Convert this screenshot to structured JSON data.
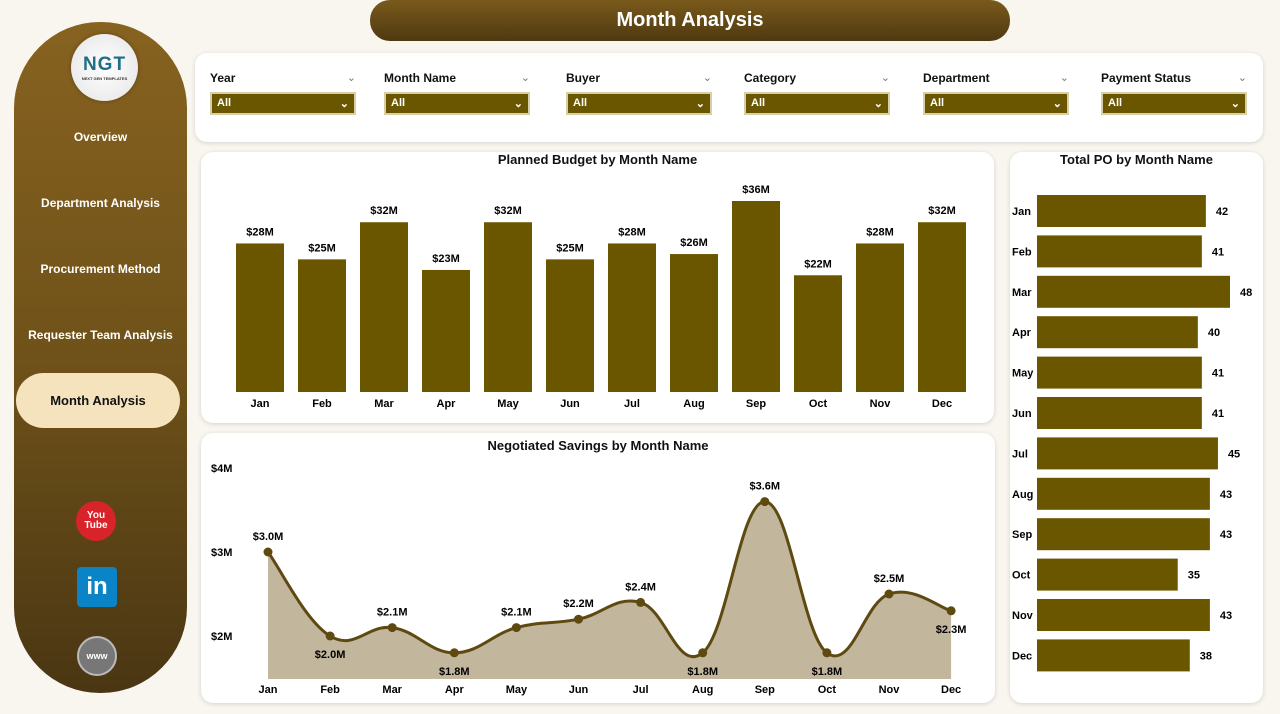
{
  "logo": {
    "text": "NGT",
    "subtitle": "NEXT GEN TEMPLATES"
  },
  "title": "Month Analysis",
  "nav": [
    {
      "label": "Overview"
    },
    {
      "label": "Department Analysis"
    },
    {
      "label": "Procurement Method"
    },
    {
      "label": "Requester Team Analysis"
    },
    {
      "label": "Month Analysis",
      "active": true
    }
  ],
  "social": [
    {
      "icon": "youtube-icon",
      "label": "You Tube"
    },
    {
      "icon": "linkedin-icon",
      "label": "in"
    },
    {
      "icon": "globe-icon",
      "label": "www"
    }
  ],
  "filters": [
    {
      "label": "Year",
      "value": "All"
    },
    {
      "label": "Month Name",
      "value": "All"
    },
    {
      "label": "Buyer",
      "value": "All"
    },
    {
      "label": "Category",
      "value": "All"
    },
    {
      "label": "Department",
      "value": "All"
    },
    {
      "label": "Payment Status",
      "value": "All"
    }
  ],
  "colors": {
    "bar": "#6b5600",
    "area": "#c2b69c",
    "line": "#5e4a10",
    "active_nav": "#f4e3bd"
  },
  "chart_data": [
    {
      "type": "bar",
      "title": "Planned Budget by Month Name",
      "categories": [
        "Jan",
        "Feb",
        "Mar",
        "Apr",
        "May",
        "Jun",
        "Jul",
        "Aug",
        "Sep",
        "Oct",
        "Nov",
        "Dec"
      ],
      "values": [
        28,
        25,
        32,
        23,
        32,
        25,
        28,
        26,
        36,
        22,
        28,
        32
      ],
      "labels": [
        "$28M",
        "$25M",
        "$32M",
        "$23M",
        "$32M",
        "$25M",
        "$28M",
        "$26M",
        "$36M",
        "$22M",
        "$28M",
        "$32M"
      ],
      "unit": "$M",
      "ylim": [
        0,
        37
      ]
    },
    {
      "type": "area",
      "title": "Negotiated Savings by Month Name",
      "categories": [
        "Jan",
        "Feb",
        "Mar",
        "Apr",
        "May",
        "Jun",
        "Jul",
        "Aug",
        "Sep",
        "Oct",
        "Nov",
        "Dec"
      ],
      "values": [
        3.0,
        2.0,
        2.1,
        1.8,
        2.1,
        2.2,
        2.4,
        1.8,
        3.6,
        1.8,
        2.5,
        2.3
      ],
      "labels": [
        "$3.0M",
        "$2.0M",
        "$2.1M",
        "$1.8M",
        "$2.1M",
        "$2.2M",
        "$2.4M",
        "$1.8M",
        "$3.6M",
        "$1.8M",
        "$2.5M",
        "$2.3M"
      ],
      "yticks": [
        "$2M",
        "$3M",
        "$4M"
      ],
      "ylim": [
        1.5,
        4
      ]
    },
    {
      "type": "bar",
      "orientation": "horizontal",
      "title": "Total PO by Month Name",
      "categories": [
        "Jan",
        "Feb",
        "Mar",
        "Apr",
        "May",
        "Jun",
        "Jul",
        "Aug",
        "Sep",
        "Oct",
        "Nov",
        "Dec"
      ],
      "values": [
        42,
        41,
        48,
        40,
        41,
        41,
        45,
        43,
        43,
        35,
        43,
        38
      ]
    }
  ]
}
